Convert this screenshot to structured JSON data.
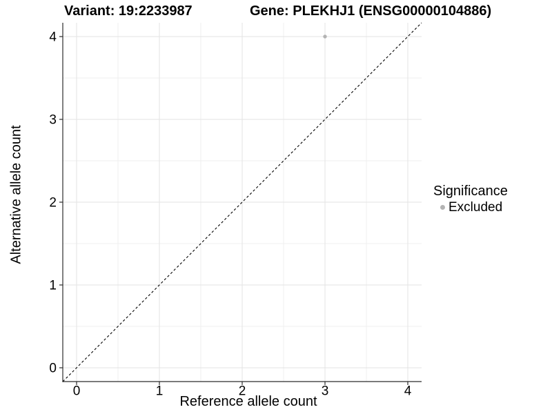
{
  "header": {
    "title_left": "Variant: 19:2233987",
    "title_right": "Gene: PLEKHJ1 (ENSG00000104886)"
  },
  "chart_data": {
    "type": "scatter",
    "title_left": "Variant: 19:2233987",
    "title_right": "Gene: PLEKHJ1 (ENSG00000104886)",
    "xlabel": "Reference allele count",
    "ylabel": "Alternative allele count",
    "xlim": [
      -0.1667,
      4.1667
    ],
    "ylim": [
      -0.1667,
      4.1667
    ],
    "xticks": [
      0,
      1,
      2,
      3,
      4
    ],
    "yticks": [
      0,
      1,
      2,
      3,
      4
    ],
    "xminor": [
      0.5,
      1.5,
      2.5,
      3.5
    ],
    "yminor": [
      0.5,
      1.5,
      2.5,
      3.5
    ],
    "grid": true,
    "identity_line": {
      "style": "dashed",
      "color": "#000000",
      "from": [
        -0.1667,
        -0.1667
      ],
      "to": [
        4.1667,
        4.1667
      ]
    },
    "series": [
      {
        "name": "Excluded",
        "color": "#b3b3b3",
        "points": [
          {
            "x": 3,
            "y": 4
          }
        ]
      }
    ],
    "legend": {
      "position": "right",
      "title": "Significance",
      "items": [
        {
          "label": "Excluded",
          "color": "#b3b3b3"
        }
      ]
    },
    "style": {
      "background": "#ffffff",
      "grid_major_color": "#e3e3e3",
      "grid_minor_color": "#efefef",
      "axis_line_color": "#2b2b2b",
      "tick_color": "#2b2b2b",
      "text_color": "#000000"
    }
  }
}
